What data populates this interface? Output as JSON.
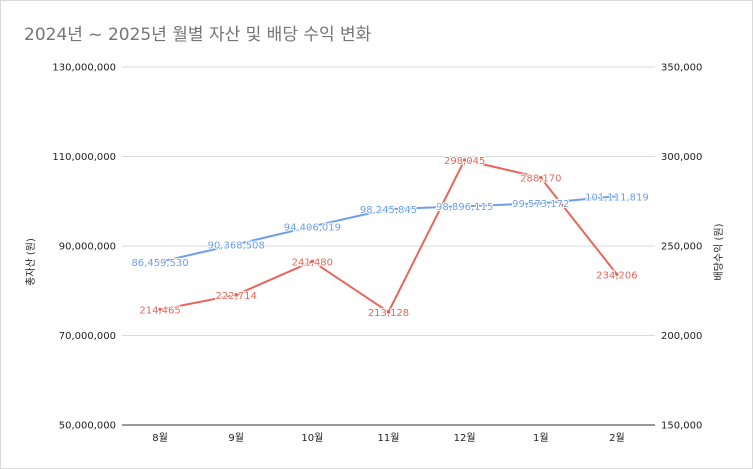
{
  "chart_data": {
    "type": "line",
    "title": "2024년 ~ 2025년 월별 자산 및 배당 수익 변화",
    "categories": [
      "8월",
      "9월",
      "10월",
      "11월",
      "12월",
      "1월",
      "2월"
    ],
    "series": [
      {
        "name": "총자산 (원)",
        "axis": "left",
        "color": "#6d9eeb",
        "values": [
          86459530,
          90368508,
          94406019,
          98245845,
          98896115,
          99573172,
          101111819
        ],
        "labels": [
          "86,459,530",
          "90,368,508",
          "94,406,019",
          "98,245,845",
          "98,896,115",
          "99,573,172",
          "101,111,819"
        ]
      },
      {
        "name": "배당수익 (원)",
        "axis": "right",
        "color": "#e8675a",
        "values": [
          214465,
          222714,
          241480,
          213128,
          298045,
          288170,
          234206
        ],
        "labels": [
          "214,465",
          "222,714",
          "241,480",
          "213,128",
          "298,045",
          "288,170",
          "234,206"
        ]
      }
    ],
    "ylabel_left": "총자산 (원)",
    "ylabel_right": "배당수익 (원)",
    "ylim_left": [
      50000000,
      130000000
    ],
    "ylim_right": [
      150000,
      350000
    ],
    "yticks_left": [
      "50,000,000",
      "70,000,000",
      "90,000,000",
      "110,000,000",
      "130,000,000"
    ],
    "yticks_right": [
      "150,000",
      "200,000",
      "250,000",
      "300,000",
      "350,000"
    ],
    "grid": true,
    "legend": "none"
  }
}
